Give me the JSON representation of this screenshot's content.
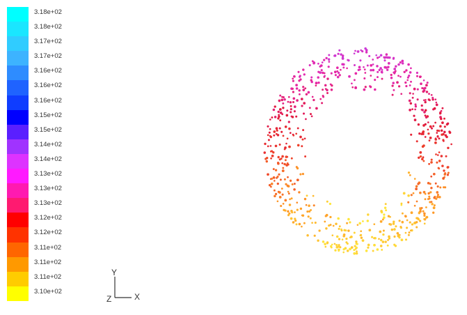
{
  "chart_data": {
    "type": "scatter",
    "title": "",
    "xlabel": "",
    "ylabel": "",
    "colorbar": {
      "labels": [
        "3.18e+02",
        "3.18e+02",
        "3.17e+02",
        "3.17e+02",
        "3.16e+02",
        "3.16e+02",
        "3.16e+02",
        "3.15e+02",
        "3.15e+02",
        "3.14e+02",
        "3.14e+02",
        "3.13e+02",
        "3.13e+02",
        "3.13e+02",
        "3.12e+02",
        "3.12e+02",
        "3.11e+02",
        "3.11e+02",
        "3.11e+02",
        "3.10e+02"
      ],
      "colors": [
        "#00ffff",
        "#1ae6ff",
        "#30ccff",
        "#3db3ff",
        "#2e8cff",
        "#1f63ff",
        "#0f3dff",
        "#0000ff",
        "#5a1fff",
        "#a033ff",
        "#dd33ff",
        "#ff1aff",
        "#ff1ab0",
        "#ff1a70",
        "#ff0000",
        "#ff3300",
        "#ff6600",
        "#ff9900",
        "#ffcc00",
        "#ffff00"
      ],
      "range": [
        310,
        318
      ]
    },
    "points_description": "ring of particles",
    "ring": {
      "center": [
        0,
        0
      ],
      "outer_radius": 1.0,
      "inner_radius": 0.55,
      "count": 750
    }
  },
  "axes_triad": {
    "y": "Y",
    "z": "Z",
    "x": "X"
  }
}
